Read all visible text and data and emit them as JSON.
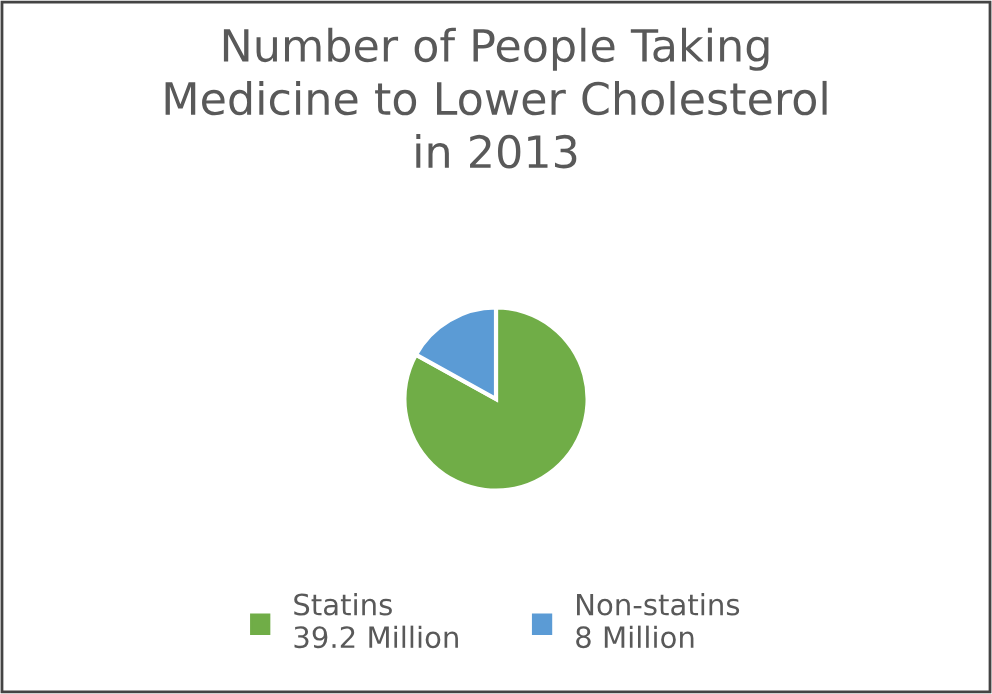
{
  "chart_data": {
    "type": "pie",
    "title": "Number of People Taking\nMedicine to Lower Cholesterol\nin 2013",
    "categories": [
      "Statins\n39.2 Million",
      "Non-statins\n8 Million"
    ],
    "values": [
      39.2,
      8
    ],
    "colors": [
      "#70ad47",
      "#5b9bd5"
    ],
    "legend": "bottom"
  }
}
